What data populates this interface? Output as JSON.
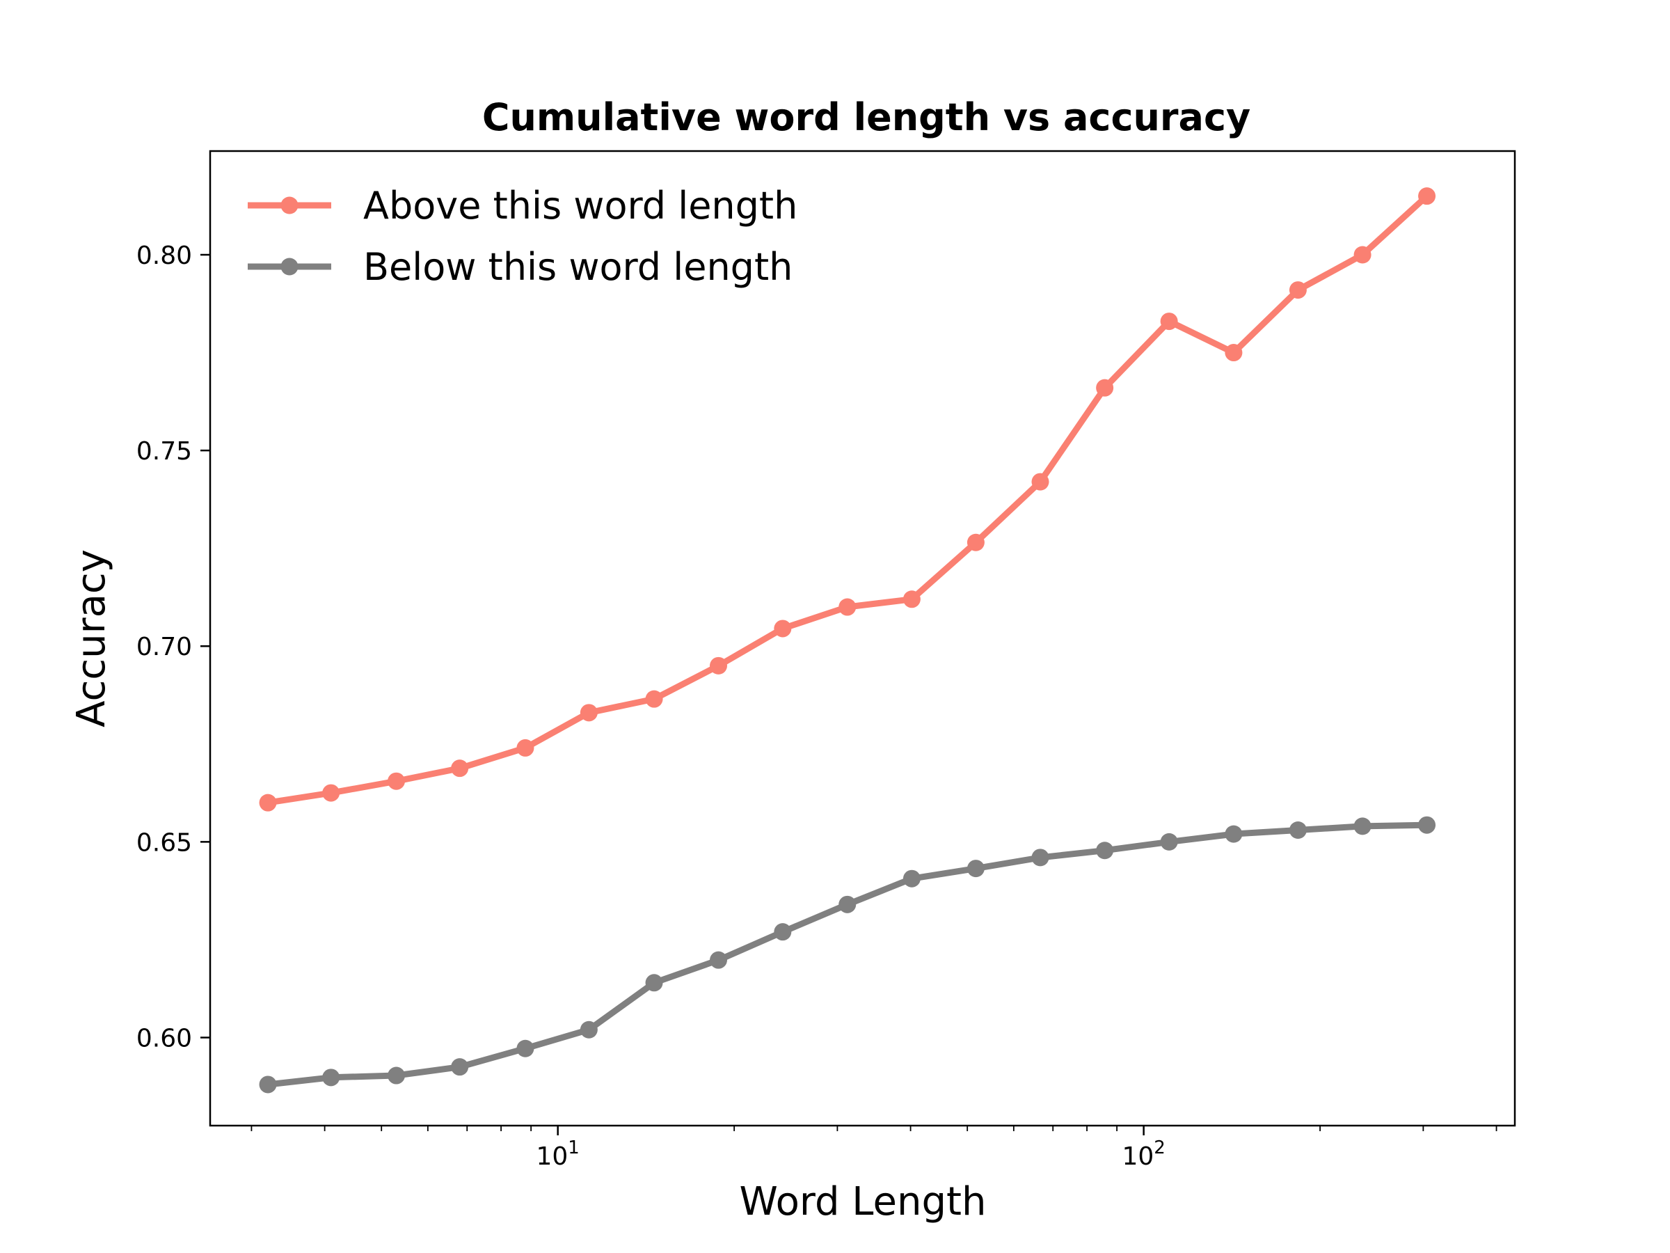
{
  "chart_data": {
    "type": "line",
    "title": "Cumulative word length vs accuracy",
    "xlabel": "Word Length",
    "ylabel": "Accuracy",
    "xscale": "log",
    "xlim": [
      2.55,
      430
    ],
    "ylim": [
      0.5775,
      0.8265
    ],
    "grid": false,
    "legend_position": "top-left",
    "x": [
      3.2,
      4.1,
      5.3,
      6.8,
      8.8,
      11.3,
      14.6,
      18.8,
      24.2,
      31.2,
      40.2,
      51.7,
      66.6,
      85.8,
      110.5,
      142.4,
      183.4,
      236.3,
      304.3
    ],
    "x_ticks": [
      {
        "value": 10,
        "base": "10",
        "exp": "1"
      },
      {
        "value": 100,
        "base": "10",
        "exp": "2"
      }
    ],
    "y_ticks": [
      0.6,
      0.65,
      0.7,
      0.75,
      0.8
    ],
    "y_tick_labels": [
      "0.60",
      "0.65",
      "0.70",
      "0.75",
      "0.80"
    ],
    "series": [
      {
        "name": "Above this word length",
        "color": "#fa8072",
        "values": [
          0.66,
          0.6625,
          0.6655,
          0.6688,
          0.674,
          0.683,
          0.6865,
          0.695,
          0.7045,
          0.71,
          0.712,
          0.7265,
          0.742,
          0.766,
          0.783,
          0.775,
          0.791,
          0.8,
          0.815
        ]
      },
      {
        "name": "Below this word length",
        "color": "#808080",
        "values": [
          0.588,
          0.5898,
          0.5903,
          0.5925,
          0.5972,
          0.602,
          0.614,
          0.6198,
          0.627,
          0.634,
          0.6406,
          0.6432,
          0.646,
          0.6478,
          0.65,
          0.652,
          0.653,
          0.654,
          0.6543
        ]
      }
    ]
  }
}
